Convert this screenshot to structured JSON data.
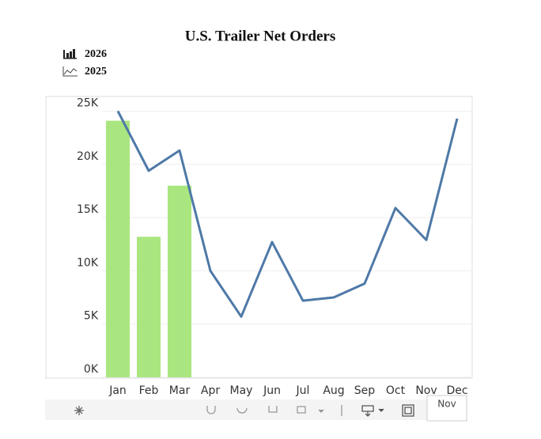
{
  "chart_data": {
    "type": "bar-line",
    "title": "U.S. Trailer Net Orders",
    "categories": [
      "Jan",
      "Feb",
      "Mar",
      "Apr",
      "May",
      "Jun",
      "Jul",
      "Aug",
      "Sep",
      "Oct",
      "Nov",
      "Dec"
    ],
    "series": [
      {
        "name": "2026",
        "type": "bar",
        "color": "#a9e67f",
        "values": [
          24100,
          13200,
          18000,
          null,
          null,
          null,
          null,
          null,
          null,
          null,
          null,
          null
        ]
      },
      {
        "name": "2025",
        "type": "line",
        "color": "#4e79a7",
        "values": [
          25000,
          19400,
          21300,
          10000,
          5700,
          12700,
          7200,
          7500,
          8800,
          15900,
          12900,
          24300
        ]
      }
    ],
    "ylim": [
      0,
      26300
    ],
    "yticks": [
      {
        "value": 0,
        "label": "0K"
      },
      {
        "value": 5000,
        "label": "5K"
      },
      {
        "value": 10000,
        "label": "10K"
      },
      {
        "value": 15000,
        "label": "15K"
      },
      {
        "value": 20000,
        "label": "20K"
      },
      {
        "value": 25000,
        "label": "25K"
      }
    ],
    "grid": true,
    "tooltip": "Nov"
  }
}
